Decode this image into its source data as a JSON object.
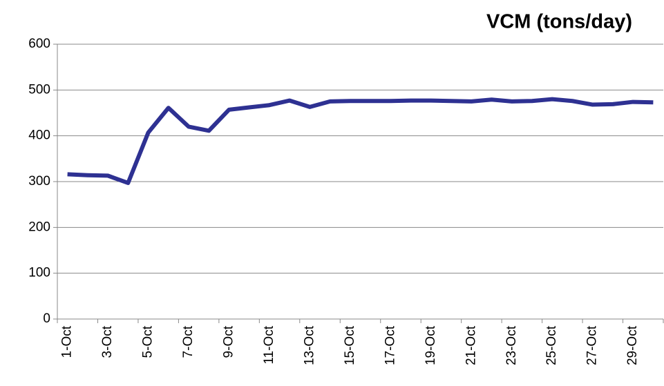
{
  "chart_data": {
    "type": "line",
    "title": "VCM (tons/day)",
    "categories": [
      "1-Oct",
      null,
      "3-Oct",
      null,
      "5-Oct",
      null,
      "7-Oct",
      null,
      "9-Oct",
      null,
      "11-Oct",
      null,
      "13-Oct",
      null,
      "15-Oct",
      null,
      "17-Oct",
      null,
      "19-Oct",
      null,
      "21-Oct",
      null,
      "23-Oct",
      null,
      "25-Oct",
      null,
      "27-Oct",
      null,
      "29-Oct",
      null
    ],
    "values": [
      316,
      314,
      313,
      297,
      407,
      461,
      420,
      411,
      457,
      462,
      467,
      477,
      463,
      475,
      476,
      476,
      476,
      477,
      477,
      476,
      475,
      479,
      475,
      476,
      480,
      476,
      468,
      469,
      474,
      473
    ],
    "color": "#2e3192",
    "ylim": [
      0,
      600
    ],
    "yticks": [
      0,
      100,
      200,
      300,
      400,
      500,
      600
    ],
    "grid": true
  }
}
